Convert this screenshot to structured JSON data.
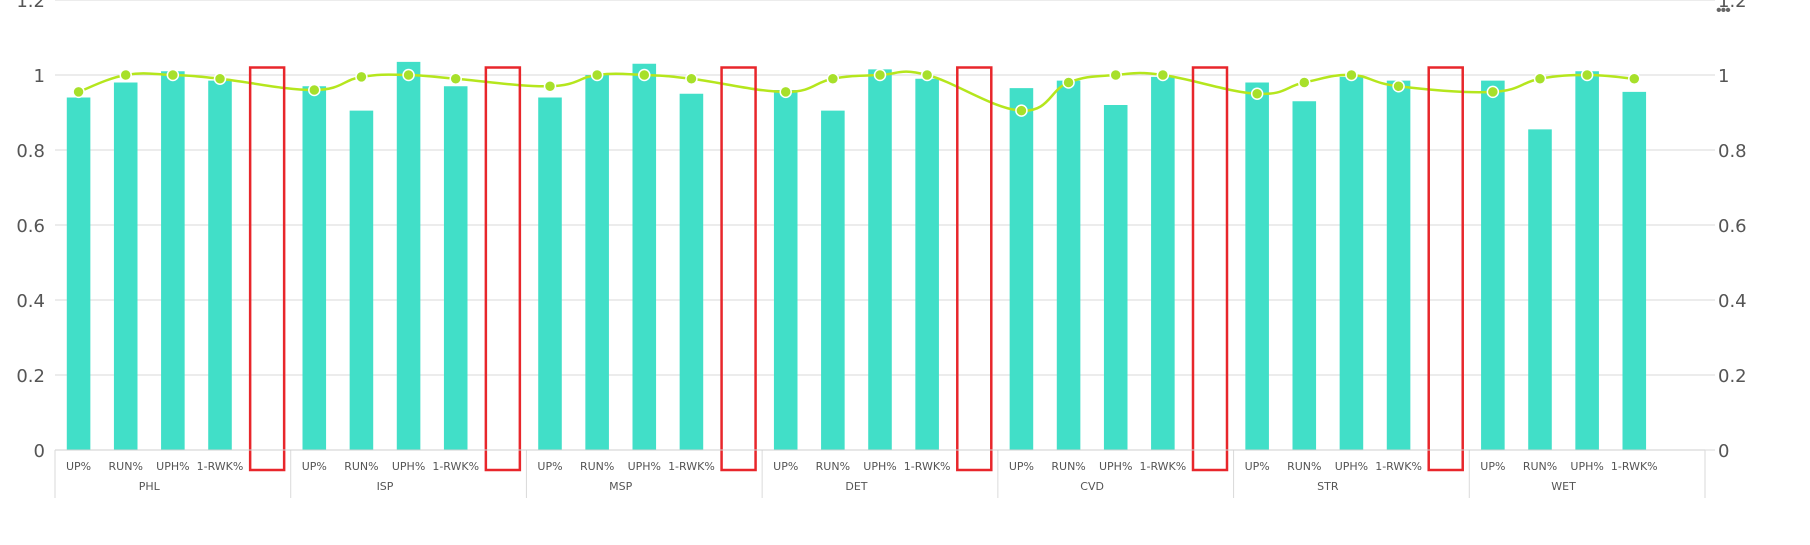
{
  "chart_data": {
    "type": "bar",
    "groups": [
      {
        "name": "PHL",
        "categories": [
          "UP%",
          "RUN%",
          "UPH%",
          "1-RWK%"
        ],
        "bar_values": [
          0.94,
          0.98,
          1.01,
          0.985
        ],
        "line_values": [
          0.955,
          1.0,
          1.0,
          0.99
        ]
      },
      {
        "name": "ISP",
        "categories": [
          "UP%",
          "RUN%",
          "UPH%",
          "1-RWK%"
        ],
        "bar_values": [
          0.97,
          0.905,
          1.035,
          0.97
        ],
        "line_values": [
          0.96,
          0.995,
          1.0,
          0.99
        ]
      },
      {
        "name": "MSP",
        "categories": [
          "UP%",
          "RUN%",
          "UPH%",
          "1-RWK%"
        ],
        "bar_values": [
          0.94,
          1.0,
          1.03,
          0.95
        ],
        "line_values": [
          0.97,
          1.0,
          1.0,
          0.99
        ]
      },
      {
        "name": "DET",
        "categories": [
          "UP%",
          "RUN%",
          "UPH%",
          "1-RWK%"
        ],
        "bar_values": [
          0.96,
          0.905,
          1.015,
          0.99
        ],
        "line_values": [
          0.955,
          0.99,
          1.0,
          1.0
        ]
      },
      {
        "name": "CVD",
        "categories": [
          "UP%",
          "RUN%",
          "UPH%",
          "1-RWK%"
        ],
        "bar_values": [
          0.965,
          0.985,
          0.92,
          0.995
        ],
        "line_values": [
          0.905,
          0.98,
          1.0,
          1.0
        ]
      },
      {
        "name": "STR",
        "categories": [
          "UP%",
          "RUN%",
          "UPH%",
          "1-RWK%"
        ],
        "bar_values": [
          0.98,
          0.93,
          0.995,
          0.985
        ],
        "line_values": [
          0.95,
          0.98,
          1.0,
          0.97
        ]
      },
      {
        "name": "WET",
        "categories": [
          "UP%",
          "RUN%",
          "UPH%",
          "1-RWK%"
        ],
        "bar_values": [
          0.985,
          0.855,
          1.01,
          0.955
        ],
        "line_values": [
          0.955,
          0.99,
          1.0,
          0.99
        ]
      }
    ],
    "y_left": {
      "ticks": [
        "0",
        "0.2",
        "0.4",
        "0.6",
        "0.8",
        "1",
        "1.2"
      ],
      "range": [
        0,
        1.2
      ]
    },
    "y_right": {
      "ticks": [
        "0",
        "0.2",
        "0.4",
        "0.6",
        "0.8",
        "1",
        "1.2"
      ],
      "range": [
        0,
        1.2
      ]
    },
    "grid": true,
    "highlight_boxes_after_groups": [
      "PHL",
      "ISP",
      "MSP",
      "DET",
      "CVD",
      "STR"
    ],
    "colors": {
      "bar": "#41dfc8",
      "line": "#b5e61d",
      "marker": "#a7e02a",
      "highlight": "#e8262b",
      "grid": "#dadada",
      "axis_text": "#555555"
    }
  },
  "toolbar": {
    "more_label": "•••"
  }
}
